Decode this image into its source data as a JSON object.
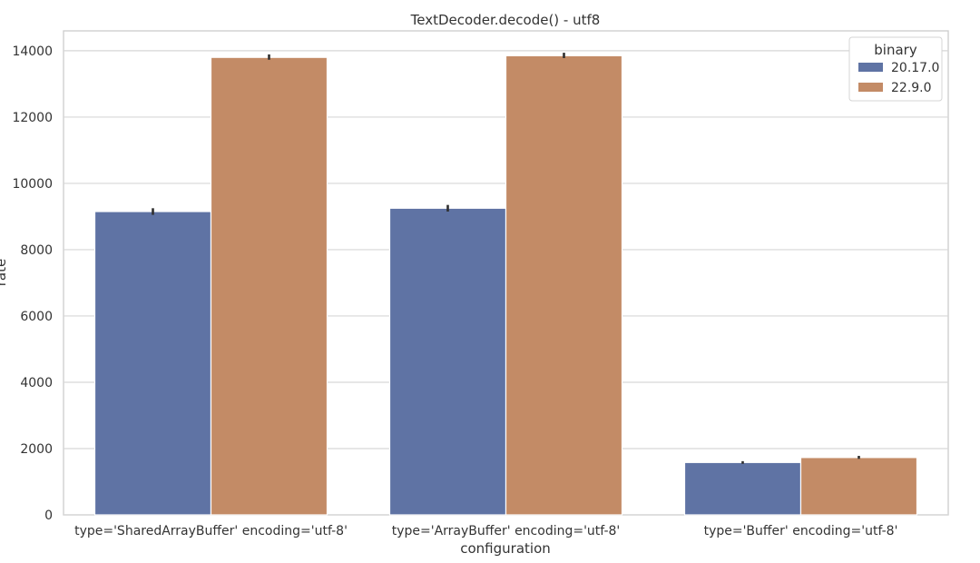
{
  "chart_data": {
    "type": "bar",
    "title": "TextDecoder.decode() - utf8",
    "xlabel": "configuration",
    "ylabel": "rate",
    "categories": [
      "type='SharedArrayBuffer' encoding='utf-8'",
      "type='ArrayBuffer' encoding='utf-8'",
      "type='Buffer' encoding='utf-8'"
    ],
    "series": [
      {
        "name": "20.17.0",
        "color": "#5f73a4",
        "values": [
          9150,
          9250,
          1580
        ],
        "error_low": [
          9050,
          9150,
          1540
        ],
        "error_high": [
          9250,
          9350,
          1620
        ]
      },
      {
        "name": "22.9.0",
        "color": "#c38b66",
        "values": [
          13800,
          13850,
          1730
        ],
        "error_low": [
          13730,
          13780,
          1690
        ],
        "error_high": [
          13890,
          13940,
          1780
        ]
      }
    ],
    "ylim": [
      0,
      14600
    ],
    "yticks": [
      0,
      2000,
      4000,
      6000,
      8000,
      10000,
      12000,
      14000
    ],
    "grid": true,
    "legend": {
      "title": "binary",
      "placement": "top-right"
    }
  }
}
